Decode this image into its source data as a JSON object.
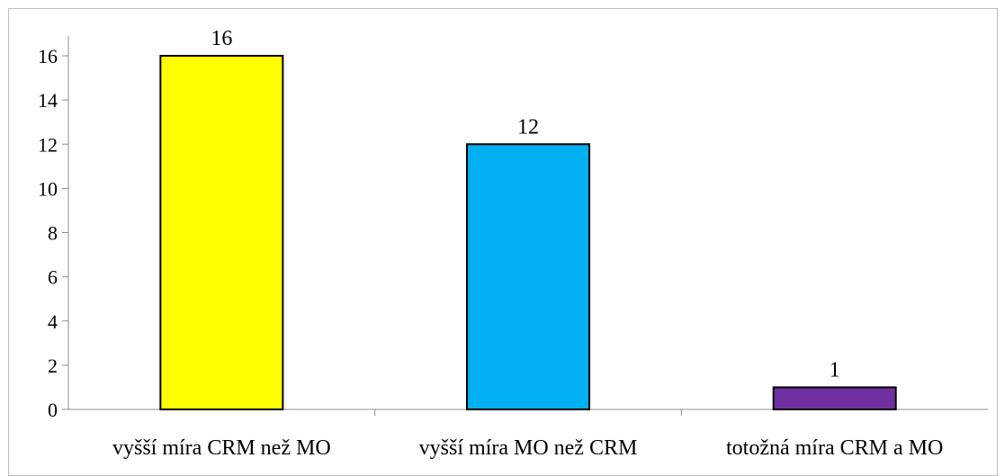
{
  "chart_data": {
    "type": "bar",
    "categories": [
      "vyšší míra CRM než MO",
      "vyšší míra MO než CRM",
      "totožná míra CRM a MO"
    ],
    "values": [
      16,
      12,
      1
    ],
    "data_labels": [
      "16",
      "12",
      "1"
    ],
    "bar_colors": [
      "#ffff00",
      "#00b0f0",
      "#7030a0"
    ],
    "title": "",
    "xlabel": "",
    "ylabel": "",
    "ylim": [
      0,
      16
    ],
    "yticks": [
      0,
      2,
      4,
      6,
      8,
      10,
      12,
      14,
      16
    ],
    "grid": false,
    "legend": "none"
  }
}
